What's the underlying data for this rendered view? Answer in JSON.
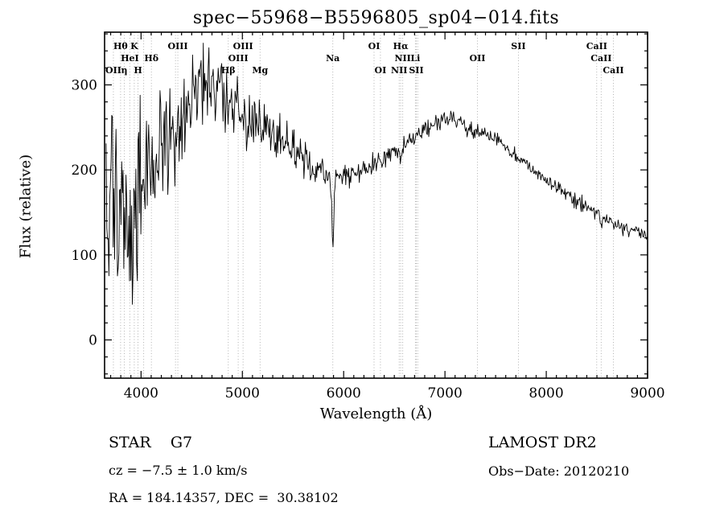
{
  "chart_data": {
    "type": "line",
    "title": "spec−55968−B5596805_sp04−014.fits",
    "xlabel": "Wavelength (Å)",
    "ylabel": "Flux (relative)",
    "xlim": [
      3640,
      9000
    ],
    "ylim": [
      -45,
      362
    ],
    "xticks_major": [
      4000,
      5000,
      6000,
      7000,
      8000,
      9000
    ],
    "xtick_minor_step": 100,
    "yticks_major": [
      0,
      100,
      200,
      300
    ],
    "ytick_minor_step": 20,
    "grid": "dotted vertical lines at spectral features",
    "legend": "none",
    "seed": 20120210,
    "step": 7,
    "continuum": [
      [
        3655,
        130
      ],
      [
        3700,
        148
      ],
      [
        3750,
        155
      ],
      [
        3800,
        150
      ],
      [
        3850,
        152
      ],
      [
        3900,
        158
      ],
      [
        3950,
        165
      ],
      [
        4000,
        185
      ],
      [
        4100,
        205
      ],
      [
        4200,
        228
      ],
      [
        4300,
        248
      ],
      [
        4400,
        262
      ],
      [
        4500,
        285
      ],
      [
        4600,
        300
      ],
      [
        4650,
        302
      ],
      [
        4700,
        298
      ],
      [
        4750,
        296
      ],
      [
        4800,
        294
      ],
      [
        4850,
        285
      ],
      [
        4900,
        272
      ],
      [
        4950,
        268
      ],
      [
        5000,
        265
      ],
      [
        5100,
        252
      ],
      [
        5200,
        248
      ],
      [
        5300,
        238
      ],
      [
        5400,
        232
      ],
      [
        5500,
        222
      ],
      [
        5600,
        212
      ],
      [
        5700,
        203
      ],
      [
        5800,
        196
      ],
      [
        5900,
        192
      ],
      [
        6000,
        192
      ],
      [
        6100,
        196
      ],
      [
        6200,
        201
      ],
      [
        6300,
        206
      ],
      [
        6400,
        213
      ],
      [
        6500,
        221
      ],
      [
        6600,
        229
      ],
      [
        6700,
        239
      ],
      [
        6800,
        248
      ],
      [
        6900,
        254
      ],
      [
        7000,
        258
      ],
      [
        7100,
        256
      ],
      [
        7200,
        251
      ],
      [
        7300,
        246
      ],
      [
        7400,
        241
      ],
      [
        7500,
        234
      ],
      [
        7600,
        227
      ],
      [
        7700,
        216
      ],
      [
        7800,
        207
      ],
      [
        7900,
        197
      ],
      [
        8000,
        188
      ],
      [
        8100,
        179
      ],
      [
        8200,
        171
      ],
      [
        8300,
        163
      ],
      [
        8400,
        156
      ],
      [
        8500,
        149
      ],
      [
        8600,
        142
      ],
      [
        8700,
        136
      ],
      [
        8800,
        130
      ],
      [
        8900,
        127
      ],
      [
        9000,
        122
      ]
    ],
    "noise": [
      [
        3655,
        95
      ],
      [
        3800,
        85
      ],
      [
        3950,
        70
      ],
      [
        4100,
        55
      ],
      [
        4250,
        48
      ],
      [
        4400,
        40
      ],
      [
        4550,
        34
      ],
      [
        4700,
        32
      ],
      [
        4850,
        28
      ],
      [
        5000,
        24
      ],
      [
        5200,
        21
      ],
      [
        5400,
        18
      ],
      [
        5600,
        14
      ],
      [
        5800,
        12
      ],
      [
        6000,
        10
      ],
      [
        6200,
        9
      ],
      [
        6500,
        8
      ],
      [
        6800,
        7
      ],
      [
        7200,
        7
      ],
      [
        7600,
        6
      ],
      [
        8000,
        6
      ],
      [
        8500,
        6
      ],
      [
        9000,
        5
      ]
    ],
    "absorptions": [
      {
        "center": 5893,
        "sigma": 9,
        "depth": 82
      },
      {
        "center": 6563,
        "sigma": 7,
        "depth": 18
      },
      {
        "center": 4861,
        "sigma": 8,
        "depth": 22
      },
      {
        "center": 8542,
        "sigma": 8,
        "depth": 10
      }
    ],
    "end_drop_flux": 93,
    "spectral_lines": [
      3727,
      3798,
      3835,
      3889,
      3933,
      3970,
      4026,
      4102,
      4340,
      4363,
      4861,
      4959,
      5007,
      5175,
      5893,
      6300,
      6363,
      6548,
      6563,
      6583,
      6708,
      6717,
      6731,
      7320,
      7725,
      8498,
      8542,
      8662
    ],
    "line_labels": [
      {
        "text": "Hθ",
        "wl": 3798,
        "row": 1
      },
      {
        "text": "K",
        "wl": 3933,
        "row": 1
      },
      {
        "text": "OIII",
        "wl": 4363,
        "row": 1
      },
      {
        "text": "OIII",
        "wl": 5007,
        "row": 1
      },
      {
        "text": "OI",
        "wl": 6300,
        "row": 1
      },
      {
        "text": "Hα",
        "wl": 6563,
        "row": 1
      },
      {
        "text": "SII",
        "wl": 7725,
        "row": 1
      },
      {
        "text": "CaII",
        "wl": 8498,
        "row": 1
      },
      {
        "text": "HeI",
        "wl": 3889,
        "row": 2
      },
      {
        "text": "Hδ",
        "wl": 4102,
        "row": 2
      },
      {
        "text": "OIII",
        "wl": 4959,
        "row": 2
      },
      {
        "text": "Na",
        "wl": 5893,
        "row": 2
      },
      {
        "text": "NII",
        "wl": 6583,
        "row": 2
      },
      {
        "text": "Li",
        "wl": 6708,
        "row": 2
      },
      {
        "text": "OII",
        "wl": 7320,
        "row": 2
      },
      {
        "text": "CaII",
        "wl": 8542,
        "row": 2
      },
      {
        "text": "OII",
        "wl": 3727,
        "row": 3
      },
      {
        "text": "η",
        "wl": 3835,
        "row": 3
      },
      {
        "text": "H",
        "wl": 3970,
        "row": 3
      },
      {
        "text": "Hβ",
        "wl": 4861,
        "row": 3
      },
      {
        "text": "Mg",
        "wl": 5175,
        "row": 3
      },
      {
        "text": "OI",
        "wl": 6363,
        "row": 3
      },
      {
        "text": "NII",
        "wl": 6548,
        "row": 3
      },
      {
        "text": "SII",
        "wl": 6717,
        "row": 3
      },
      {
        "text": "CaII",
        "wl": 8662,
        "row": 3
      }
    ],
    "colors": {
      "spectrum": "#000000",
      "grid": "#ababab",
      "axis": "#000000",
      "background": "#ffffff"
    }
  },
  "annotations": {
    "object_type": "STAR    G7",
    "survey": "LAMOST DR2",
    "cz": "cz = −7.5 ± 1.0 km/s",
    "obs_date": "Obs−Date: 20120210",
    "coords": "RA = 184.14357, DEC =  30.38102"
  }
}
